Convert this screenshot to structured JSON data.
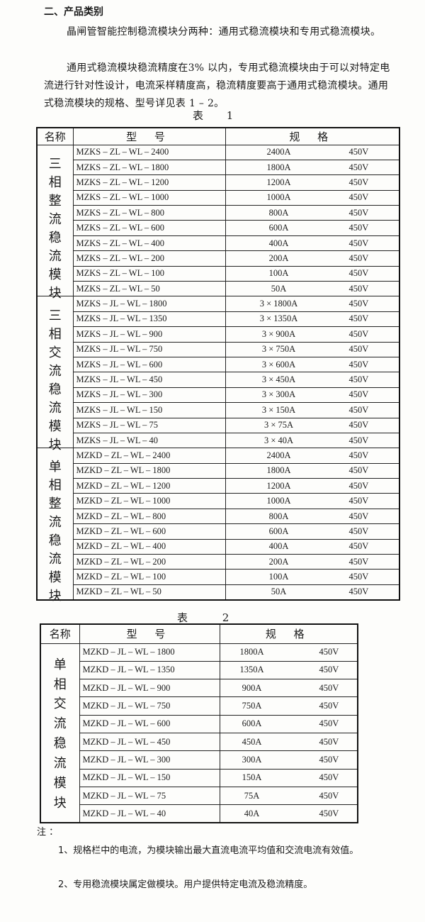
{
  "heading": "二、产品类别",
  "paragraphs": [
    "晶闸管智能控制稳流模块分两种：通用式稳流模块和专用式稳流模块。",
    "通用式稳流模块稳流精度在3% 以内，专用式稳流模块由于可以对特定电流进行针对性设计，电流采样精度高，稳流精度要高于通用式稳流模块。通用式稳流模块的规格、型号详见表 1 – 2。"
  ],
  "table1": {
    "caption": "表 1",
    "headers": [
      "名称",
      "型 号",
      "规 格"
    ],
    "groups": [
      {
        "name": "三相整流稳流模块",
        "rows": [
          [
            "MZKS – ZL – WL – 2400",
            "2400A",
            "450V"
          ],
          [
            "MZKS – ZL – WL – 1800",
            "1800A",
            "450V"
          ],
          [
            "MZKS – ZL – WL – 1200",
            "1200A",
            "450V"
          ],
          [
            "MZKS – ZL – WL – 1000",
            "1000A",
            "450V"
          ],
          [
            "MZKS – ZL – WL – 800",
            "800A",
            "450V"
          ],
          [
            "MZKS – ZL – WL – 600",
            "600A",
            "450V"
          ],
          [
            "MZKS – ZL – WL – 400",
            "400A",
            "450V"
          ],
          [
            "MZKS – ZL – WL – 200",
            "200A",
            "450V"
          ],
          [
            "MZKS – ZL – WL – 100",
            "100A",
            "450V"
          ],
          [
            "MZKS – ZL – WL – 50",
            "50A",
            "450V"
          ]
        ]
      },
      {
        "name": "三相交流稳流模块",
        "rows": [
          [
            "MZKS – JL – WL – 1800",
            "3 × 1800A",
            "450V"
          ],
          [
            "MZKS – JL – WL – 1350",
            "3 × 1350A",
            "450V"
          ],
          [
            "MZKS – JL – WL – 900",
            "3 × 900A",
            "450V"
          ],
          [
            "MZKS – JL – WL – 750",
            "3 × 750A",
            "450V"
          ],
          [
            "MZKS – JL – WL – 600",
            "3 × 600A",
            "450V"
          ],
          [
            "MZKS – JL – WL – 450",
            "3 × 450A",
            "450V"
          ],
          [
            "MZKS – JL – WL – 300",
            "3 × 300A",
            "450V"
          ],
          [
            "MZKS – JL – WL – 150",
            "3 × 150A",
            "450V"
          ],
          [
            "MZKS – JL – WL – 75",
            "3 × 75A",
            "450V"
          ],
          [
            "MZKS – JL – WL – 40",
            "3 × 40A",
            "450V"
          ]
        ]
      },
      {
        "name": "单相整流稳流模块",
        "rows": [
          [
            "MZKD – ZL – WL – 2400",
            "2400A",
            "450V"
          ],
          [
            "MZKD – ZL – WL – 1800",
            "1800A",
            "450V"
          ],
          [
            "MZKD – ZL – WL – 1200",
            "1200A",
            "450V"
          ],
          [
            "MZKD – ZL – WL – 1000",
            "1000A",
            "450V"
          ],
          [
            "MZKD – ZL – WL – 800",
            "800A",
            "450V"
          ],
          [
            "MZKD – ZL – WL – 600",
            "600A",
            "450V"
          ],
          [
            "MZKD – ZL – WL – 400",
            "400A",
            "450V"
          ],
          [
            "MZKD – ZL – WL – 200",
            "200A",
            "450V"
          ],
          [
            "MZKD – ZL – WL – 100",
            "100A",
            "450V"
          ],
          [
            "MZKD – ZL – WL – 50",
            "50A",
            "450V"
          ]
        ]
      }
    ]
  },
  "table2": {
    "caption": "表 2",
    "headers": [
      "名称",
      "型 号",
      "规 格"
    ],
    "groups": [
      {
        "name": "单相交流稳流模块",
        "rows": [
          [
            "MZKD – JL – WL – 1800",
            "1800A",
            "450V"
          ],
          [
            "MZKD – JL – WL – 1350",
            "1350A",
            "450V"
          ],
          [
            "MZKD – JL – WL – 900",
            "900A",
            "450V"
          ],
          [
            "MZKD – JL – WL – 750",
            "750A",
            "450V"
          ],
          [
            "MZKD – JL – WL – 600",
            "600A",
            "450V"
          ],
          [
            "MZKD – JL – WL – 450",
            "450A",
            "450V"
          ],
          [
            "MZKD – JL – WL – 300",
            "300A",
            "450V"
          ],
          [
            "MZKD – JL – WL – 150",
            "150A",
            "450V"
          ],
          [
            "MZKD – JL – WL – 75",
            "75A",
            "450V"
          ],
          [
            "MZKD – JL – WL – 40",
            "40A",
            "450V"
          ]
        ]
      }
    ]
  },
  "notes": {
    "label": "注 ：",
    "items": [
      "1、规格栏中的电流，为模块输出最大直流电流平均值和交流电流有效值。",
      "2、专用稳流模块属定做模块。用户提供特定电流及稳流精度。"
    ]
  }
}
